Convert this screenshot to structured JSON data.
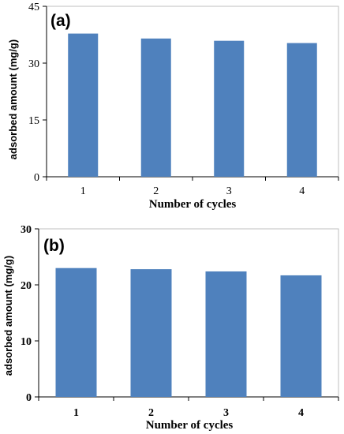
{
  "chart_data": [
    {
      "type": "bar",
      "panel_label": "(a)",
      "categories": [
        "1",
        "2",
        "3",
        "4"
      ],
      "values": [
        37.8,
        36.5,
        35.9,
        35.3
      ],
      "xlabel": "Number of cycles",
      "ylabel": "adsorbed amount (mg/g)",
      "yticks": [
        "0",
        "15",
        "30",
        "45"
      ],
      "ylim": [
        0,
        45
      ],
      "grid": false,
      "legend": "none",
      "bar_color": "#4f81bd"
    },
    {
      "type": "bar",
      "panel_label": "(b)",
      "categories": [
        "1",
        "2",
        "3",
        "4"
      ],
      "values": [
        23.0,
        22.8,
        22.4,
        21.7
      ],
      "xlabel": "Number of cycles",
      "ylabel": "adsorbed amount (mg/g)",
      "yticks": [
        "0",
        "10",
        "20",
        "30"
      ],
      "ylim": [
        0,
        30
      ],
      "grid": false,
      "legend": "none",
      "bar_color": "#4f81bd"
    }
  ]
}
